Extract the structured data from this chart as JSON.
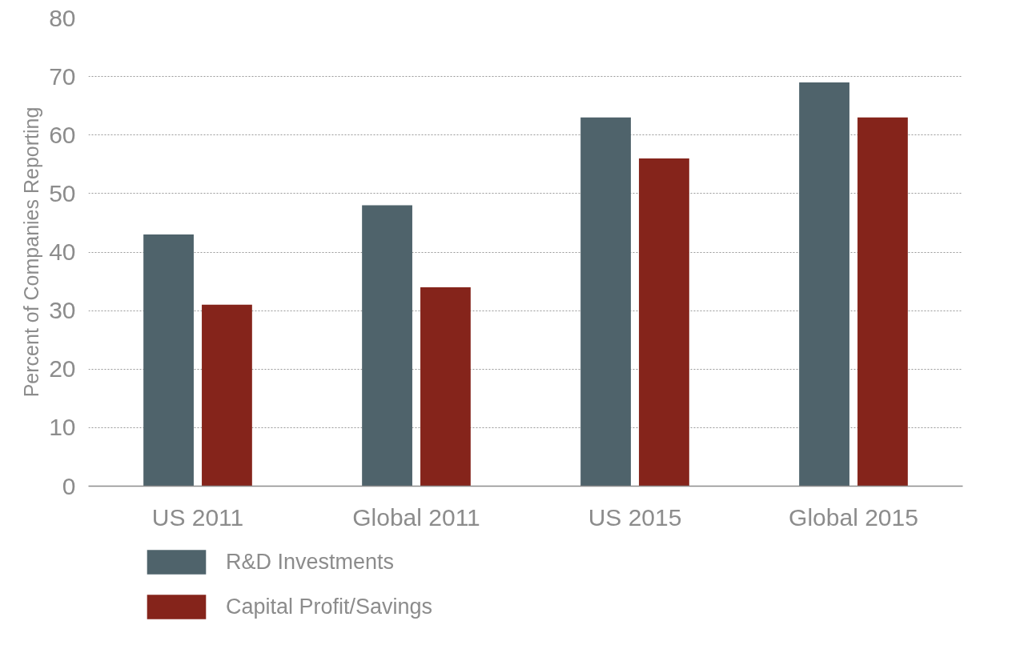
{
  "chart_data": {
    "type": "bar",
    "ylabel": "Percent of Companies Reporting",
    "categories": [
      "US 2011",
      "Global 2011",
      "US 2015",
      "Global 2015"
    ],
    "series": [
      {
        "name": "R&D Investments",
        "color": "#4f636b",
        "values": [
          43,
          48,
          63,
          69
        ]
      },
      {
        "name": "Capital Profit/Savings",
        "color": "#85241b",
        "values": [
          31,
          34,
          56,
          63
        ]
      }
    ],
    "ylim": [
      0,
      80
    ],
    "yticks": [
      0,
      10,
      20,
      30,
      40,
      50,
      60,
      70,
      80
    ],
    "grid": "y",
    "legend": "bottom"
  }
}
